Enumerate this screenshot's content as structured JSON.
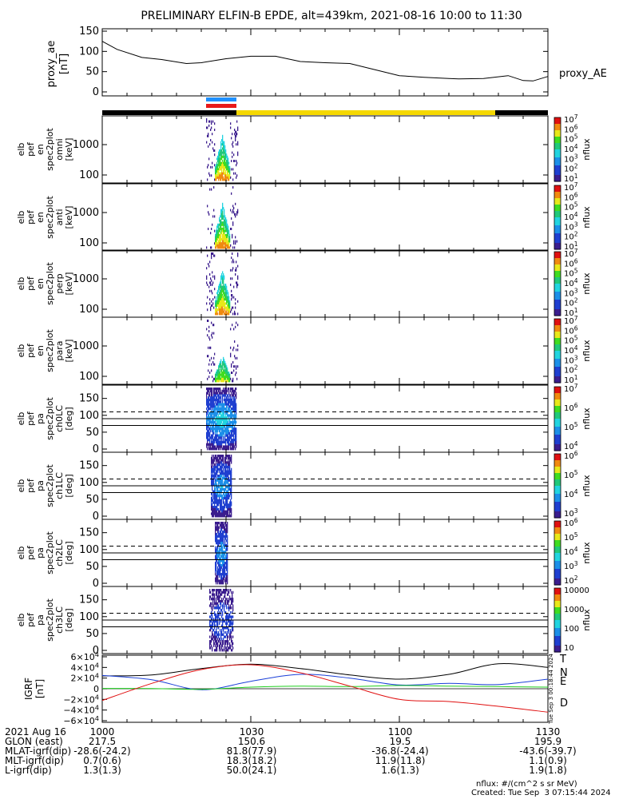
{
  "title": "PRELIMINARY ELFIN-B EPDE, alt=439km, 2021-08-16 10:00 to 11:30",
  "ae_panel": {
    "ylabel": "proxy_ae\n[nT]",
    "legend": "proxy_AE",
    "yticks": [
      "150",
      "100",
      "50",
      "0"
    ]
  },
  "spec_panels": [
    {
      "ylabel": [
        "elb",
        "pef",
        "en",
        "spec2plot",
        "omni",
        "[keV]"
      ],
      "yticks": [
        "1000",
        "100"
      ],
      "cbar_label": "nflux",
      "cbar_ticks": [
        "10^7",
        "10^6",
        "10^5",
        "10^4",
        "10^3",
        "10^2",
        "10^1"
      ]
    },
    {
      "ylabel": [
        "elb",
        "pef",
        "en",
        "spec2plot",
        "anti",
        "[keV]"
      ],
      "yticks": [
        "1000",
        "100"
      ],
      "cbar_label": "nflux",
      "cbar_ticks": [
        "10^7",
        "10^6",
        "10^5",
        "10^4",
        "10^3",
        "10^2",
        "10^1"
      ]
    },
    {
      "ylabel": [
        "elb",
        "pef",
        "en",
        "spec2plot",
        "perp",
        "[keV]"
      ],
      "yticks": [
        "1000",
        "100"
      ],
      "cbar_label": "nflux",
      "cbar_ticks": [
        "10^7",
        "10^6",
        "10^5",
        "10^4",
        "10^3",
        "10^2",
        "10^1"
      ]
    },
    {
      "ylabel": [
        "elb",
        "pef",
        "en",
        "spec2plot",
        "para",
        "[keV]"
      ],
      "yticks": [
        "1000",
        "100"
      ],
      "cbar_label": "nflux",
      "cbar_ticks": [
        "10^7",
        "10^6",
        "10^5",
        "10^4",
        "10^3",
        "10^2",
        "10^1"
      ]
    }
  ],
  "pa_panels": [
    {
      "ylabel": [
        "elb",
        "pef",
        "pa",
        "spec2plot",
        "ch0LC",
        "[deg]"
      ],
      "yticks": [
        "150",
        "100",
        "50",
        "0"
      ],
      "cbar_label": "nflux",
      "cbar_ticks": [
        "10^7",
        "10^6",
        "10^5",
        "10^4"
      ]
    },
    {
      "ylabel": [
        "elb",
        "pef",
        "pa",
        "spec2plot",
        "ch1LC",
        "[deg]"
      ],
      "yticks": [
        "150",
        "100",
        "50",
        "0"
      ],
      "cbar_label": "nflux",
      "cbar_ticks": [
        "10^6",
        "10^5",
        "10^4",
        "10^3"
      ]
    },
    {
      "ylabel": [
        "elb",
        "pef",
        "pa",
        "spec2plot",
        "ch2LC",
        "[deg]"
      ],
      "yticks": [
        "150",
        "100",
        "50",
        "0"
      ],
      "cbar_label": "nflux",
      "cbar_ticks": [
        "10^6",
        "10^5",
        "10^4",
        "10^3",
        "10^2"
      ]
    },
    {
      "ylabel": [
        "elb",
        "pef",
        "pa",
        "spec2plot",
        "ch3LC",
        "[deg]"
      ],
      "yticks": [
        "150",
        "100",
        "50",
        "0"
      ],
      "cbar_label": "nflux",
      "cbar_ticks": [
        "10000",
        "1000",
        "100",
        "10"
      ]
    }
  ],
  "igrf_panel": {
    "ylabel": "IGRF\n[nT]",
    "yticks": [
      "6×10^4",
      "4×10^4",
      "2×10^4",
      "0",
      "−2×10^4",
      "−4×10^4",
      "−6×10^4"
    ],
    "legend": [
      {
        "name": "T",
        "color": "#000000"
      },
      {
        "name": "N",
        "color": "#1a3fd8"
      },
      {
        "name": "E",
        "color": "#1fcf1f"
      },
      {
        "name": "D",
        "color": "#e01010"
      }
    ],
    "side_note": "Tue Sep  3 00:18:44 2024"
  },
  "footer": {
    "rows": [
      {
        "label": "2021 Aug 16",
        "values": [
          "1000",
          "1030",
          "1100",
          "1130"
        ]
      },
      {
        "label": "GLON (east)",
        "values": [
          "217.5",
          "150.6",
          "19.5",
          "195.9"
        ]
      },
      {
        "label": "MLAT-igrf(dip)",
        "values": [
          "-28.6(-24.2)",
          "81.8(77.9)",
          "-36.8(-24.4)",
          "-43.6(-39.7)"
        ]
      },
      {
        "label": "MLT-igrf(dip)",
        "values": [
          "0.7(0.6)",
          "18.3(18.2)",
          "11.9(11.8)",
          "1.1(0.9)"
        ]
      },
      {
        "label": "L-igrf(dip)",
        "values": [
          "1.3(1.3)",
          "50.0(24.1)",
          "1.6(1.3)",
          "1.9(1.8)"
        ]
      }
    ],
    "units_note": "nflux: #/(cm^2 s sr MeV)",
    "created": "Created: Tue Sep  3 07:15:44 2024"
  },
  "colors": {
    "status_black": "#000000",
    "status_yellow": "#f5d800",
    "blue_bar": "#1e90ff",
    "red_bar": "#e8191a"
  },
  "chart_data": [
    {
      "type": "line",
      "title": "proxy_ae",
      "ylabel": "proxy_ae [nT]",
      "x_minutes_after_1000": [
        0,
        3,
        8,
        12,
        17,
        20,
        25,
        30,
        35,
        40,
        45,
        50,
        55,
        60,
        65,
        70,
        72,
        77,
        82,
        85,
        87,
        90
      ],
      "values": [
        125,
        105,
        85,
        80,
        70,
        72,
        82,
        88,
        88,
        75,
        72,
        70,
        55,
        40,
        36,
        33,
        32,
        33,
        40,
        28,
        27,
        38
      ],
      "ylim": [
        0,
        150
      ],
      "series": [
        {
          "name": "proxy_AE",
          "color": "#000000"
        }
      ]
    },
    {
      "type": "line",
      "title": "IGRF",
      "ylabel": "IGRF [nT]",
      "ylim": [
        -60000,
        60000
      ],
      "x_minutes_after_1000": [
        0,
        10,
        20,
        30,
        40,
        50,
        60,
        70,
        80,
        90
      ],
      "series": [
        {
          "name": "T",
          "color": "#000000",
          "values": [
            24000,
            26000,
            38000,
            46000,
            38000,
            26000,
            18000,
            27000,
            47000,
            40000
          ]
        },
        {
          "name": "N",
          "color": "#1a3fd8",
          "values": [
            25000,
            17000,
            -2000,
            14000,
            27000,
            20000,
            7000,
            10000,
            8000,
            18000
          ]
        },
        {
          "name": "E",
          "color": "#1fcf1f",
          "values": [
            500,
            300,
            -1000,
            3000,
            5000,
            4000,
            6000,
            5000,
            4000,
            3000
          ]
        },
        {
          "name": "D",
          "color": "#e01010",
          "values": [
            -22000,
            10000,
            36000,
            45000,
            30000,
            5000,
            -20000,
            -24000,
            -33000,
            -44000
          ]
        }
      ]
    }
  ]
}
